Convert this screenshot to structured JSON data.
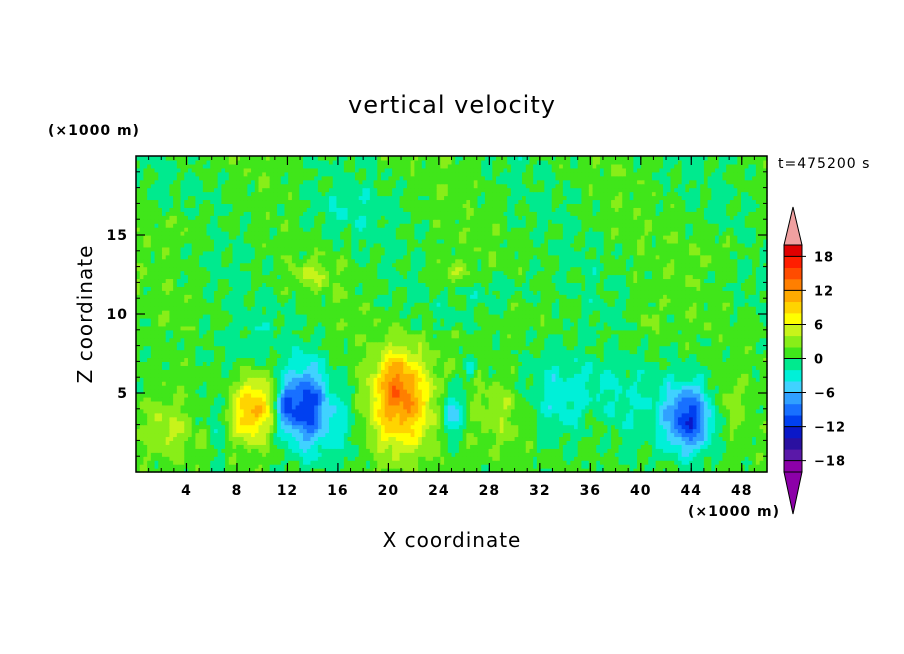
{
  "chart_data": {
    "type": "heatmap",
    "title": "vertical velocity",
    "xlabel": "X coordinate",
    "ylabel": "Z coordinate",
    "x_unit": "(×1000 m)",
    "y_unit": "(×1000 m)",
    "time_label": "t=475200 s",
    "xlim": [
      0,
      50
    ],
    "ylim": [
      0,
      20
    ],
    "x_ticks": [
      4,
      8,
      12,
      16,
      20,
      24,
      28,
      32,
      36,
      40,
      44,
      48
    ],
    "y_ticks": [
      5,
      10,
      15
    ],
    "x_minor_step": 1,
    "y_minor_step": 1,
    "colorbar": {
      "min": -20,
      "max": 20,
      "step": 2,
      "tick_values": [
        18,
        12,
        6,
        0,
        -6,
        -12,
        -18
      ],
      "tick_labels": [
        "18",
        "12",
        "6",
        "0",
        "−6",
        "−12",
        "−18"
      ],
      "colors": [
        "#8c00a8",
        "#5a18a8",
        "#2a10a0",
        "#0a18c8",
        "#0040f0",
        "#1870ff",
        "#30a0ff",
        "#40d2ff",
        "#00f0d8",
        "#00ea8e",
        "#40e61a",
        "#88ee18",
        "#c8f41a",
        "#ffff00",
        "#ffd400",
        "#ffaa00",
        "#ff7f00",
        "#ff4c00",
        "#ff1e00",
        "#e00000"
      ],
      "under_color": "#8c00a8",
      "over_color": "#f0a0a0"
    },
    "field_features": [
      {
        "x": 9.5,
        "z": 4.2,
        "w": 8,
        "sx": 1.6,
        "sz": 2.0
      },
      {
        "x": 8.6,
        "z": 3.2,
        "w": 3,
        "sx": 1.3,
        "sz": 1.6
      },
      {
        "x": 13.5,
        "z": 4.2,
        "w": -12,
        "sx": 1.7,
        "sz": 2.7
      },
      {
        "x": 11.8,
        "z": 4.2,
        "w": -7,
        "sx": 0.8,
        "sz": 1.4
      },
      {
        "x": 21,
        "z": 4.4,
        "w": 11,
        "sx": 2.6,
        "sz": 3.0
      },
      {
        "x": 20.6,
        "z": 6.2,
        "w": 4,
        "sx": 1.3,
        "sz": 1.7
      },
      {
        "x": 25,
        "z": 3.8,
        "w": -7,
        "sx": 0.9,
        "sz": 1.6
      },
      {
        "x": 26.5,
        "z": 6.5,
        "w": -4,
        "sx": 0.4,
        "sz": 0.7
      },
      {
        "x": 29,
        "z": 3.8,
        "w": 3,
        "sx": 2.4,
        "sz": 2.2
      },
      {
        "x": 16.4,
        "z": 3.0,
        "w": -3,
        "sx": 1.6,
        "sz": 2.6
      },
      {
        "x": 6.0,
        "z": 2.5,
        "w": -3.5,
        "sx": 1.0,
        "sz": 2.0
      },
      {
        "x": 5.5,
        "z": 2.0,
        "w": 3.0,
        "sx": 0.8,
        "sz": 1.3
      },
      {
        "x": 2.5,
        "z": 2.8,
        "w": 3.5,
        "sx": 2.0,
        "sz": 1.8
      },
      {
        "x": 43.8,
        "z": 3.4,
        "w": -12,
        "sx": 1.9,
        "sz": 2.1
      },
      {
        "x": 38,
        "z": 4.5,
        "w": -3,
        "sx": 4.5,
        "sz": 3.2
      },
      {
        "x": 47,
        "z": 4.2,
        "w": 2.5,
        "sx": 1.4,
        "sz": 1.9
      },
      {
        "x": 33,
        "z": 5.0,
        "w": -3,
        "sx": 2.8,
        "sz": 2.6
      },
      {
        "x": 36.5,
        "z": 3.0,
        "w": 2.0,
        "sx": 1.5,
        "sz": 1.5
      },
      {
        "x": 40.5,
        "z": 9.5,
        "w": 2.5,
        "sx": 1.0,
        "sz": 1.0
      },
      {
        "x": 14,
        "z": 12.5,
        "w": 3,
        "sx": 1.6,
        "sz": 0.8
      },
      {
        "x": 25,
        "z": 12.6,
        "w": 3,
        "sx": 1.5,
        "sz": 0.8
      },
      {
        "x": 28.5,
        "z": 11.5,
        "w": -2.0,
        "sx": 3.0,
        "sz": 1.2
      },
      {
        "x": 9,
        "z": 8.0,
        "w": -2.0,
        "sx": 3.5,
        "sz": 1.5
      },
      {
        "x": 16,
        "z": 16.5,
        "w": -1.8,
        "sx": 4.0,
        "sz": 1.5
      },
      {
        "x": 4,
        "z": 15.5,
        "w": 1.8,
        "sx": 2.0,
        "sz": 1.2
      },
      {
        "x": 46,
        "z": 14,
        "w": 1.5,
        "sx": 2.0,
        "sz": 1.2
      }
    ]
  }
}
